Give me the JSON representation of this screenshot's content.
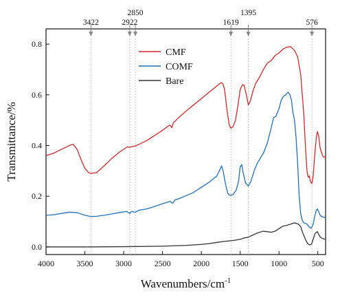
{
  "chart_data": {
    "type": "line",
    "xlabel": "Wavenumbers/cm",
    "xlabel_sup": "-1",
    "ylabel": "Transmittance/%",
    "xlim": [
      4000,
      400
    ],
    "ylim": [
      -0.03,
      0.86
    ],
    "x_reversed": true,
    "x_ticks": [
      4000,
      3500,
      3000,
      2500,
      2000,
      1500,
      1000,
      500
    ],
    "x_tick_labels": [
      "4000",
      "3500",
      "3000",
      "2500",
      "2000",
      "1500",
      "1000",
      "500"
    ],
    "y_ticks": [
      0.0,
      0.2,
      0.4,
      0.6,
      0.8
    ],
    "y_tick_labels": [
      "0.0",
      "0.2",
      "0.4",
      "0.6",
      "0.8"
    ],
    "grid": false,
    "legend_position": "top-center",
    "peaks": [
      {
        "x": 3422,
        "label": "3422",
        "row": 1
      },
      {
        "x": 2922,
        "label": "2922",
        "row": 1
      },
      {
        "x": 2850,
        "label": "2850",
        "row": 0
      },
      {
        "x": 1619,
        "label": "1619",
        "row": 1
      },
      {
        "x": 1395,
        "label": "1395",
        "row": 0
      },
      {
        "x": 576,
        "label": "576",
        "row": 1
      }
    ],
    "series": [
      {
        "name": "CMF",
        "color": "#d62728",
        "points": [
          [
            4000,
            0.36
          ],
          [
            3900,
            0.37
          ],
          [
            3800,
            0.385
          ],
          [
            3700,
            0.4
          ],
          [
            3650,
            0.405
          ],
          [
            3600,
            0.385
          ],
          [
            3550,
            0.345
          ],
          [
            3500,
            0.31
          ],
          [
            3450,
            0.293
          ],
          [
            3422,
            0.29
          ],
          [
            3350,
            0.293
          ],
          [
            3250,
            0.32
          ],
          [
            3150,
            0.35
          ],
          [
            3050,
            0.375
          ],
          [
            2950,
            0.395
          ],
          [
            2922,
            0.393
          ],
          [
            2900,
            0.395
          ],
          [
            2850,
            0.398
          ],
          [
            2800,
            0.405
          ],
          [
            2700,
            0.42
          ],
          [
            2600,
            0.44
          ],
          [
            2500,
            0.46
          ],
          [
            2420,
            0.478
          ],
          [
            2400,
            0.48
          ],
          [
            2380,
            0.47
          ],
          [
            2360,
            0.49
          ],
          [
            2340,
            0.495
          ],
          [
            2300,
            0.508
          ],
          [
            2200,
            0.535
          ],
          [
            2100,
            0.56
          ],
          [
            2000,
            0.585
          ],
          [
            1900,
            0.61
          ],
          [
            1800,
            0.635
          ],
          [
            1760,
            0.645
          ],
          [
            1740,
            0.648
          ],
          [
            1720,
            0.642
          ],
          [
            1700,
            0.62
          ],
          [
            1670,
            0.54
          ],
          [
            1640,
            0.48
          ],
          [
            1619,
            0.468
          ],
          [
            1590,
            0.475
          ],
          [
            1560,
            0.5
          ],
          [
            1530,
            0.555
          ],
          [
            1500,
            0.62
          ],
          [
            1470,
            0.64
          ],
          [
            1450,
            0.638
          ],
          [
            1420,
            0.6
          ],
          [
            1395,
            0.56
          ],
          [
            1370,
            0.575
          ],
          [
            1330,
            0.62
          ],
          [
            1300,
            0.645
          ],
          [
            1250,
            0.67
          ],
          [
            1200,
            0.7
          ],
          [
            1150,
            0.725
          ],
          [
            1100,
            0.735
          ],
          [
            1050,
            0.755
          ],
          [
            1000,
            0.765
          ],
          [
            950,
            0.78
          ],
          [
            900,
            0.788
          ],
          [
            850,
            0.79
          ],
          [
            800,
            0.775
          ],
          [
            760,
            0.75
          ],
          [
            720,
            0.68
          ],
          [
            680,
            0.52
          ],
          [
            660,
            0.4
          ],
          [
            640,
            0.3
          ],
          [
            625,
            0.275
          ],
          [
            610,
            0.28
          ],
          [
            600,
            0.265
          ],
          [
            590,
            0.255
          ],
          [
            576,
            0.25
          ],
          [
            560,
            0.28
          ],
          [
            540,
            0.36
          ],
          [
            520,
            0.43
          ],
          [
            505,
            0.455
          ],
          [
            490,
            0.44
          ],
          [
            470,
            0.39
          ],
          [
            450,
            0.37
          ],
          [
            430,
            0.355
          ],
          [
            410,
            0.355
          ],
          [
            400,
            0.35
          ]
        ]
      },
      {
        "name": "COMF",
        "color": "#1f6fbf",
        "points": [
          [
            4000,
            0.125
          ],
          [
            3900,
            0.127
          ],
          [
            3800,
            0.132
          ],
          [
            3700,
            0.137
          ],
          [
            3600,
            0.135
          ],
          [
            3500,
            0.125
          ],
          [
            3422,
            0.12
          ],
          [
            3350,
            0.121
          ],
          [
            3250,
            0.125
          ],
          [
            3150,
            0.13
          ],
          [
            3050,
            0.136
          ],
          [
            2960,
            0.14
          ],
          [
            2922,
            0.132
          ],
          [
            2900,
            0.14
          ],
          [
            2850,
            0.137
          ],
          [
            2800,
            0.145
          ],
          [
            2700,
            0.15
          ],
          [
            2600,
            0.16
          ],
          [
            2500,
            0.17
          ],
          [
            2400,
            0.18
          ],
          [
            2370,
            0.172
          ],
          [
            2340,
            0.185
          ],
          [
            2250,
            0.195
          ],
          [
            2100,
            0.215
          ],
          [
            2000,
            0.235
          ],
          [
            1900,
            0.255
          ],
          [
            1800,
            0.28
          ],
          [
            1760,
            0.305
          ],
          [
            1740,
            0.32
          ],
          [
            1720,
            0.3
          ],
          [
            1690,
            0.25
          ],
          [
            1660,
            0.212
          ],
          [
            1640,
            0.205
          ],
          [
            1619,
            0.203
          ],
          [
            1590,
            0.207
          ],
          [
            1550,
            0.225
          ],
          [
            1520,
            0.26
          ],
          [
            1500,
            0.315
          ],
          [
            1480,
            0.325
          ],
          [
            1460,
            0.29
          ],
          [
            1430,
            0.252
          ],
          [
            1395,
            0.24
          ],
          [
            1360,
            0.26
          ],
          [
            1320,
            0.3
          ],
          [
            1280,
            0.33
          ],
          [
            1250,
            0.345
          ],
          [
            1200,
            0.37
          ],
          [
            1150,
            0.41
          ],
          [
            1100,
            0.47
          ],
          [
            1070,
            0.51
          ],
          [
            1040,
            0.515
          ],
          [
            1000,
            0.545
          ],
          [
            970,
            0.58
          ],
          [
            940,
            0.595
          ],
          [
            920,
            0.598
          ],
          [
            900,
            0.605
          ],
          [
            880,
            0.61
          ],
          [
            860,
            0.6
          ],
          [
            840,
            0.58
          ],
          [
            820,
            0.53
          ],
          [
            800,
            0.5
          ],
          [
            780,
            0.43
          ],
          [
            760,
            0.33
          ],
          [
            740,
            0.2
          ],
          [
            720,
            0.13
          ],
          [
            700,
            0.105
          ],
          [
            680,
            0.095
          ],
          [
            660,
            0.093
          ],
          [
            640,
            0.09
          ],
          [
            620,
            0.082
          ],
          [
            600,
            0.075
          ],
          [
            580,
            0.075
          ],
          [
            560,
            0.09
          ],
          [
            540,
            0.12
          ],
          [
            520,
            0.145
          ],
          [
            505,
            0.15
          ],
          [
            490,
            0.14
          ],
          [
            470,
            0.125
          ],
          [
            450,
            0.12
          ],
          [
            430,
            0.118
          ],
          [
            400,
            0.115
          ]
        ]
      },
      {
        "name": "Bare",
        "color": "#333333",
        "points": [
          [
            4000,
            0.0
          ],
          [
            3500,
            0.0
          ],
          [
            3000,
            0.001
          ],
          [
            2500,
            0.003
          ],
          [
            2200,
            0.006
          ],
          [
            2000,
            0.01
          ],
          [
            1900,
            0.013
          ],
          [
            1800,
            0.018
          ],
          [
            1700,
            0.022
          ],
          [
            1600,
            0.025
          ],
          [
            1500,
            0.03
          ],
          [
            1450,
            0.035
          ],
          [
            1400,
            0.038
          ],
          [
            1350,
            0.045
          ],
          [
            1300,
            0.052
          ],
          [
            1250,
            0.058
          ],
          [
            1200,
            0.062
          ],
          [
            1150,
            0.06
          ],
          [
            1100,
            0.058
          ],
          [
            1050,
            0.062
          ],
          [
            1000,
            0.072
          ],
          [
            950,
            0.082
          ],
          [
            900,
            0.085
          ],
          [
            850,
            0.09
          ],
          [
            800,
            0.095
          ],
          [
            750,
            0.09
          ],
          [
            720,
            0.08
          ],
          [
            700,
            0.06
          ],
          [
            680,
            0.045
          ],
          [
            660,
            0.03
          ],
          [
            640,
            0.018
          ],
          [
            620,
            0.01
          ],
          [
            600,
            0.008
          ],
          [
            580,
            0.012
          ],
          [
            560,
            0.03
          ],
          [
            540,
            0.05
          ],
          [
            520,
            0.058
          ],
          [
            505,
            0.06
          ],
          [
            490,
            0.05
          ],
          [
            470,
            0.04
          ],
          [
            450,
            0.035
          ],
          [
            430,
            0.032
          ],
          [
            400,
            0.03
          ]
        ]
      }
    ]
  }
}
